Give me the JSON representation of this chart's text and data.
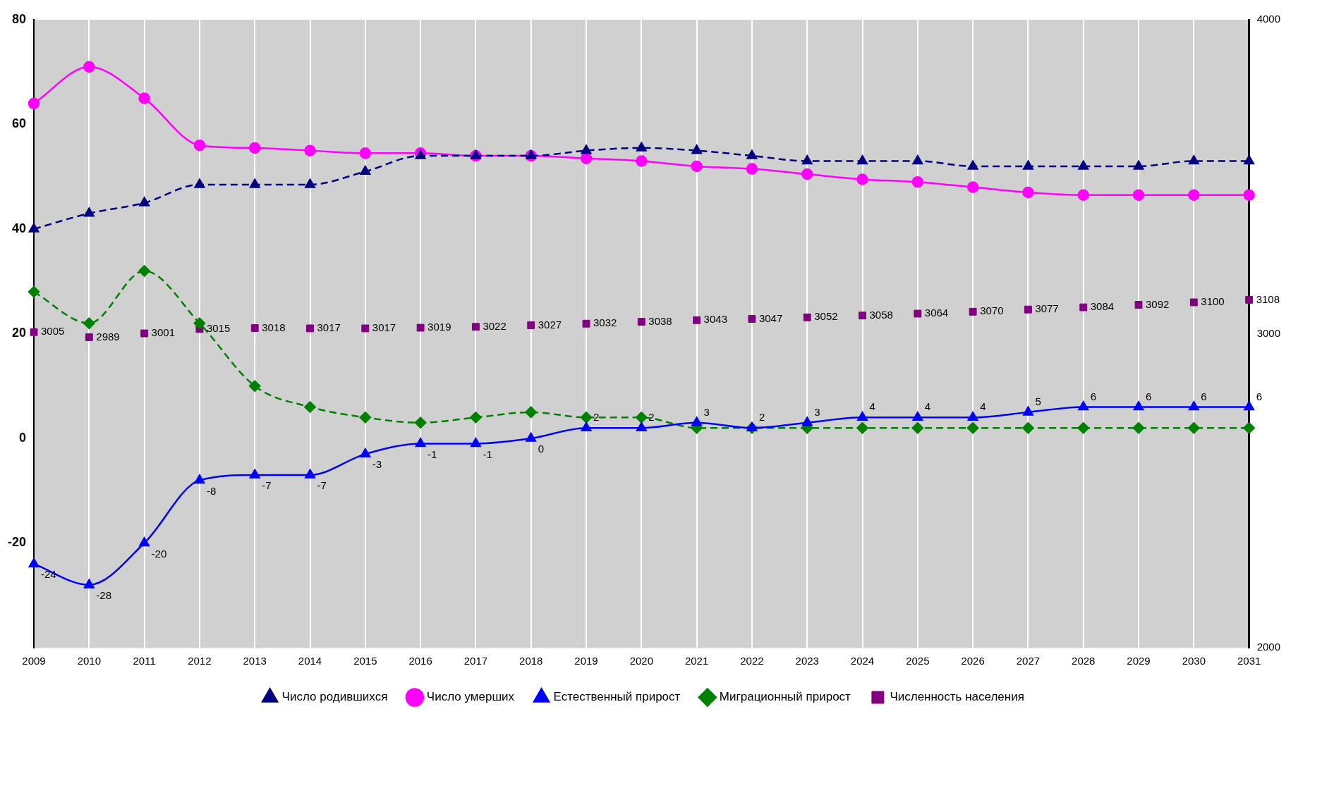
{
  "chart_data": {
    "type": "line",
    "categories": [
      "2009",
      "2010",
      "2011",
      "2012",
      "2013",
      "2014",
      "2015",
      "2016",
      "2017",
      "2018",
      "2019",
      "2020",
      "2021",
      "2022",
      "2023",
      "2024",
      "2025",
      "2026",
      "2027",
      "2028",
      "2029",
      "2030",
      "2031"
    ],
    "series": [
      {
        "name": "Число родившихся",
        "color": "#000080",
        "marker": "triangle",
        "line_style": "dashed",
        "values": [
          40,
          43,
          45,
          48.5,
          48.5,
          48.5,
          51,
          54,
          54,
          54,
          55,
          55.5,
          55,
          54,
          53,
          53,
          53,
          52,
          52,
          52,
          52,
          53,
          53
        ]
      },
      {
        "name": "Число умерших",
        "color": "#ff00ff",
        "marker": "circle",
        "line_style": "solid",
        "values": [
          64,
          71,
          65,
          56,
          55.5,
          55,
          54.5,
          54.5,
          54,
          54,
          53.5,
          53,
          52,
          51.5,
          50.5,
          49.5,
          49,
          48,
          47,
          46.5,
          46.5,
          46.5,
          46.5
        ]
      },
      {
        "name": "Естественный прирост",
        "color": "#0000ff",
        "marker": "triangle",
        "line_style": "solid",
        "values": [
          -24,
          -28,
          -20,
          -8,
          -7,
          -7,
          -3,
          -1,
          -1,
          0,
          2,
          2,
          3,
          2,
          3,
          4,
          4,
          4,
          5,
          6,
          6,
          6,
          6
        ],
        "value_labels": [
          "-24",
          "-28",
          "-20",
          "-8",
          "-7",
          "-7",
          "-3",
          "-1",
          "-1",
          "0",
          "2",
          "2",
          "3",
          "2",
          "3",
          "4",
          "4",
          "4",
          "5",
          "6",
          "6",
          "6",
          "6"
        ]
      },
      {
        "name": "Миграционный прирост",
        "color": "#008000",
        "marker": "diamond",
        "line_style": "dashed",
        "values": [
          28,
          22,
          32,
          22,
          10,
          6,
          4,
          3,
          4,
          5,
          4,
          4,
          2,
          2,
          2,
          2,
          2,
          2,
          2,
          2,
          2,
          2,
          2
        ]
      },
      {
        "name": "Численность населения",
        "type": "scatter",
        "axis": "y2",
        "color": "#800080",
        "marker": "square",
        "values": [
          3005,
          2989,
          3001,
          3015,
          3018,
          3017,
          3017,
          3019,
          3022,
          3027,
          3032,
          3038,
          3043,
          3047,
          3052,
          3058,
          3064,
          3070,
          3077,
          3084,
          3092,
          3100,
          3108
        ],
        "value_labels": [
          "3005",
          "2989",
          "3001",
          "3015",
          "3018",
          "3017",
          "3017",
          "3019",
          "3022",
          "3027",
          "3032",
          "3038",
          "3043",
          "3047",
          "3052",
          "3058",
          "3064",
          "3070",
          "3077",
          "3084",
          "3092",
          "3100",
          "3108"
        ]
      }
    ],
    "ylim": [
      -40,
      80
    ],
    "yticks": [
      -20,
      0,
      20,
      40,
      60,
      80
    ],
    "y2lim": [
      2000,
      4000
    ],
    "y2ticks": [
      2000,
      3000,
      4000
    ],
    "grid": "x",
    "legend": "bottom"
  }
}
